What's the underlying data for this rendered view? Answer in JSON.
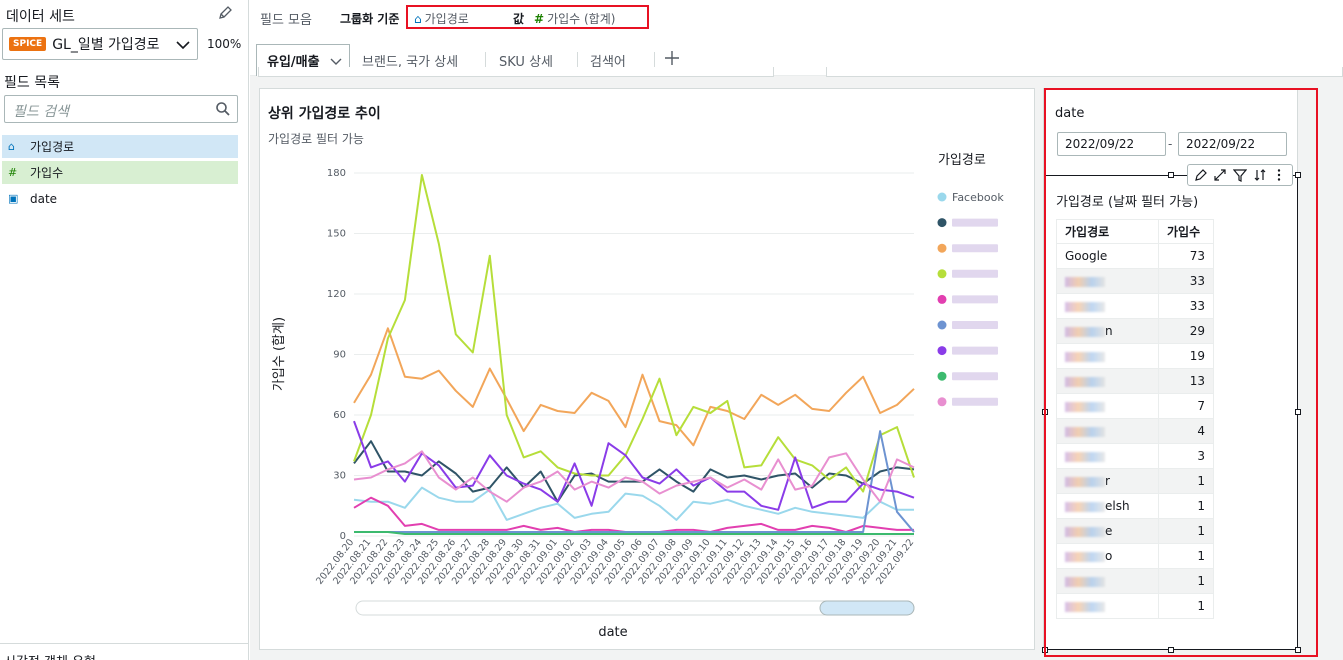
{
  "left_panel": {
    "dataset_title": "데이터 세트",
    "spice_badge": "SPICE",
    "dataset_name": "GL_일별 가입경로",
    "zoom": "100%",
    "fields_title": "필드 목록",
    "search_placeholder": "필드 검색",
    "fields": [
      {
        "icon": "dimension-icon",
        "name": "가입경로"
      },
      {
        "icon": "measure-icon",
        "name": "가입수"
      },
      {
        "icon": "date-icon",
        "name": "date"
      }
    ],
    "bottom_text": "시각적 객체 유형"
  },
  "field_wells": {
    "title": "필드 모음",
    "group_by_label": "그룹화 기준",
    "group_by_field": "가입경로",
    "value_label": "값",
    "value_field": "가입수 (합계)"
  },
  "sheet_tabs": [
    "유입/매출",
    "브랜드, 국가 상세",
    "SKU 상세",
    "검색어"
  ],
  "visual1": {
    "title": "상위 가입경로 추이",
    "subtitle": "가입경로 필터 가능",
    "legend_title": "가입경로",
    "ylabel": "가입수 (합계)",
    "xlabel": "date"
  },
  "visual2": {
    "date_label": "date",
    "date_from": "2022/09/22",
    "date_sep": "-",
    "date_to": "2022/09/22",
    "title": "가입경로 (날짜 필터 가능)",
    "columns": [
      "가입경로",
      "가입수"
    ],
    "rows": [
      {
        "name": "Google",
        "value": "73"
      },
      {
        "name": "",
        "value": "33"
      },
      {
        "name": "",
        "value": "33"
      },
      {
        "name": "n",
        "value": "29"
      },
      {
        "name": "",
        "value": "19"
      },
      {
        "name": "",
        "value": "13"
      },
      {
        "name": "",
        "value": "7"
      },
      {
        "name": "",
        "value": "4"
      },
      {
        "name": "",
        "value": "3"
      },
      {
        "name": "r",
        "value": "1"
      },
      {
        "name": "elsh",
        "value": "1"
      },
      {
        "name": "e",
        "value": "1"
      },
      {
        "name": "o",
        "value": "1"
      },
      {
        "name": "",
        "value": "1"
      },
      {
        "name": "",
        "value": "1"
      }
    ]
  },
  "colors": {
    "accent_red": "#e81123",
    "spice_orange": "#ec7211",
    "dimension_blue": "#0073bb",
    "measure_green": "#1d8102"
  },
  "chart_data": {
    "type": "line",
    "ylim": [
      0,
      180
    ],
    "yticks": [
      0,
      30,
      60,
      90,
      120,
      150,
      180
    ],
    "x": [
      "2022.08.20",
      "2022.08.21",
      "2022.08.22",
      "2022.08.23",
      "2022.08.24",
      "2022.08.25",
      "2022.08.26",
      "2022.08.27",
      "2022.08.28",
      "2022.08.29",
      "2022.08.30",
      "2022.08.31",
      "2022.09.01",
      "2022.09.02",
      "2022.09.03",
      "2022.09.04",
      "2022.09.05",
      "2022.09.06",
      "2022.09.07",
      "2022.09.08",
      "2022.09.09",
      "2022.09.10",
      "2022.09.11",
      "2022.09.12",
      "2022.09.13",
      "2022.09.14",
      "2022.09.15",
      "2022.09.16",
      "2022.09.17",
      "2022.09.18",
      "2022.09.19",
      "2022.09.20",
      "2022.09.21",
      "2022.09.22"
    ],
    "legend_position": "right",
    "series": [
      {
        "name": "Facebook",
        "color": "#9ad8ec",
        "values": [
          18,
          17,
          17,
          14,
          24,
          19,
          17,
          17,
          23,
          8,
          11,
          14,
          16,
          9,
          11,
          12,
          21,
          20,
          15,
          8,
          17,
          16,
          18,
          15,
          13,
          11,
          14,
          12,
          11,
          10,
          9,
          17,
          13,
          13
        ]
      },
      {
        "name": "",
        "color": "#2f5467",
        "values": [
          36,
          47,
          32,
          32,
          30,
          37,
          31,
          22,
          24,
          34,
          24,
          32,
          17,
          30,
          31,
          27,
          27,
          27,
          33,
          27,
          22,
          33,
          29,
          30,
          28,
          30,
          31,
          24,
          31,
          30,
          26,
          32,
          34,
          33
        ]
      },
      {
        "name": "",
        "color": "#f2a65a",
        "values": [
          66,
          80,
          103,
          79,
          78,
          82,
          72,
          64,
          83,
          68,
          52,
          65,
          62,
          61,
          71,
          67,
          54,
          80,
          57,
          55,
          45,
          64,
          62,
          58,
          70,
          65,
          70,
          63,
          62,
          71,
          79,
          61,
          65,
          73
        ]
      },
      {
        "name": "",
        "color": "#b6de3a",
        "values": [
          37,
          60,
          98,
          117,
          179,
          145,
          100,
          91,
          139,
          60,
          39,
          42,
          34,
          31,
          30,
          30,
          40,
          58,
          78,
          50,
          64,
          61,
          67,
          34,
          35,
          49,
          38,
          35,
          28,
          34,
          22,
          50,
          54,
          29
        ]
      },
      {
        "name": "",
        "color": "#e23fb0",
        "values": [
          14,
          19,
          15,
          5,
          6,
          3,
          3,
          3,
          3,
          3,
          5,
          3,
          4,
          2,
          3,
          3,
          2,
          2,
          2,
          3,
          3,
          2,
          4,
          5,
          6,
          3,
          3,
          5,
          4,
          2,
          5,
          4,
          3,
          3
        ]
      },
      {
        "name": "",
        "color": "#6d93d1",
        "values": [
          2,
          2,
          2,
          2,
          2,
          2,
          2,
          2,
          2,
          2,
          2,
          2,
          2,
          2,
          2,
          2,
          2,
          2,
          2,
          2,
          2,
          2,
          2,
          2,
          2,
          2,
          2,
          2,
          2,
          2,
          2,
          52,
          12,
          2
        ]
      },
      {
        "name": "",
        "color": "#8a3ce8",
        "values": [
          57,
          34,
          37,
          27,
          41,
          35,
          24,
          25,
          40,
          30,
          26,
          23,
          17,
          36,
          15,
          46,
          40,
          29,
          26,
          33,
          25,
          29,
          22,
          22,
          15,
          13,
          39,
          14,
          17,
          17,
          26,
          23,
          22,
          19
        ]
      },
      {
        "name": "",
        "color": "#3cba6e",
        "values": [
          2,
          2,
          2,
          1,
          1,
          1,
          1,
          1,
          1,
          1,
          1,
          1,
          1,
          1,
          1,
          1,
          1,
          1,
          1,
          1,
          1,
          1,
          1,
          1,
          1,
          1,
          1,
          1,
          1,
          1,
          1,
          1,
          1,
          1
        ]
      },
      {
        "name": "",
        "color": "#e88fd0",
        "values": [
          28,
          29,
          33,
          36,
          42,
          29,
          23,
          29,
          22,
          17,
          24,
          27,
          32,
          23,
          27,
          24,
          29,
          27,
          21,
          25,
          27,
          29,
          24,
          28,
          23,
          38,
          23,
          25,
          39,
          41,
          28,
          17,
          38,
          34
        ]
      }
    ]
  }
}
